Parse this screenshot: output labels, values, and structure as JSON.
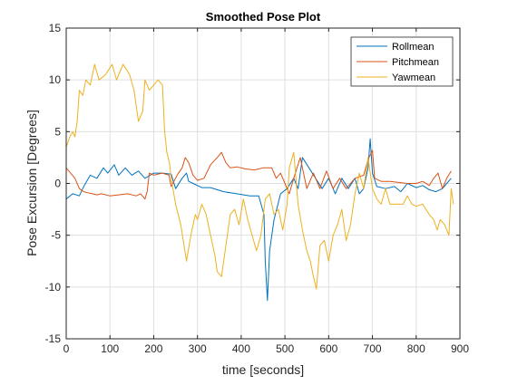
{
  "chart_data": {
    "type": "line",
    "title": "Smoothed Pose Plot",
    "xlabel": "time [seconds]",
    "ylabel": "Pose Excursion [Degrees]",
    "xlim": [
      0,
      900
    ],
    "ylim": [
      -15,
      15
    ],
    "xticks": [
      0,
      100,
      200,
      300,
      400,
      500,
      600,
      700,
      800,
      900
    ],
    "yticks": [
      -15,
      -10,
      -5,
      0,
      5,
      10,
      15
    ],
    "grid": true,
    "legend_position": "top-right",
    "series": [
      {
        "name": "Rollmean",
        "color": "#0072bd",
        "points": [
          [
            0,
            -1.5
          ],
          [
            15,
            -1.0
          ],
          [
            30,
            -1.2
          ],
          [
            40,
            -0.3
          ],
          [
            55,
            0.8
          ],
          [
            70,
            0.5
          ],
          [
            85,
            1.5
          ],
          [
            95,
            1.0
          ],
          [
            110,
            1.8
          ],
          [
            120,
            0.8
          ],
          [
            135,
            1.5
          ],
          [
            150,
            0.8
          ],
          [
            165,
            1.2
          ],
          [
            180,
            0.5
          ],
          [
            200,
            1.0
          ],
          [
            220,
            1.0
          ],
          [
            240,
            0.9
          ],
          [
            250,
            -0.5
          ],
          [
            265,
            0.5
          ],
          [
            275,
            1.0
          ],
          [
            280,
            0.2
          ],
          [
            290,
            0.0
          ],
          [
            310,
            -0.4
          ],
          [
            330,
            -0.4
          ],
          [
            360,
            -0.8
          ],
          [
            390,
            -1.0
          ],
          [
            420,
            -1.2
          ],
          [
            440,
            -1.2
          ],
          [
            452,
            -3.0
          ],
          [
            455,
            -7.5
          ],
          [
            460,
            -11.3
          ],
          [
            465,
            -6.5
          ],
          [
            475,
            -3.5
          ],
          [
            490,
            -1.0
          ],
          [
            505,
            -0.5
          ],
          [
            520,
            0.5
          ],
          [
            530,
            -0.5
          ],
          [
            540,
            2.5
          ],
          [
            555,
            1.5
          ],
          [
            570,
            0.5
          ],
          [
            585,
            -0.5
          ],
          [
            600,
            0.5
          ],
          [
            615,
            -1.0
          ],
          [
            630,
            0.5
          ],
          [
            645,
            -0.5
          ],
          [
            660,
            0.5
          ],
          [
            670,
            -1.0
          ],
          [
            680,
            -0.5
          ],
          [
            690,
            1.5
          ],
          [
            695,
            4.3
          ],
          [
            700,
            1.0
          ],
          [
            710,
            -0.3
          ],
          [
            730,
            -0.5
          ],
          [
            750,
            -0.3
          ],
          [
            765,
            -0.8
          ],
          [
            780,
            0.0
          ],
          [
            800,
            -0.4
          ],
          [
            815,
            -0.2
          ],
          [
            830,
            -0.6
          ],
          [
            845,
            -0.8
          ],
          [
            860,
            -0.5
          ],
          [
            870,
            0.0
          ],
          [
            880,
            0.5
          ]
        ]
      },
      {
        "name": "Pitchmean",
        "color": "#d95319",
        "points": [
          [
            0,
            1.5
          ],
          [
            10,
            1.0
          ],
          [
            20,
            0.5
          ],
          [
            30,
            -0.5
          ],
          [
            40,
            -0.8
          ],
          [
            50,
            -0.9
          ],
          [
            60,
            -1.0
          ],
          [
            70,
            -1.1
          ],
          [
            80,
            -1.0
          ],
          [
            100,
            -1.2
          ],
          [
            120,
            -1.1
          ],
          [
            140,
            -1.0
          ],
          [
            160,
            -1.2
          ],
          [
            170,
            -1.0
          ],
          [
            180,
            -1.5
          ],
          [
            185,
            -0.8
          ],
          [
            190,
            1.0
          ],
          [
            200,
            0.8
          ],
          [
            210,
            0.9
          ],
          [
            220,
            1.0
          ],
          [
            235,
            0.8
          ],
          [
            240,
            -0.3
          ],
          [
            255,
            0.9
          ],
          [
            265,
            1.5
          ],
          [
            272,
            2.5
          ],
          [
            280,
            2.0
          ],
          [
            290,
            0.8
          ],
          [
            300,
            0.3
          ],
          [
            315,
            0.5
          ],
          [
            330,
            1.8
          ],
          [
            345,
            2.5
          ],
          [
            355,
            3.0
          ],
          [
            365,
            2.0
          ],
          [
            375,
            1.5
          ],
          [
            390,
            1.6
          ],
          [
            410,
            1.4
          ],
          [
            430,
            1.3
          ],
          [
            450,
            1.5
          ],
          [
            460,
            1.5
          ],
          [
            470,
            1.5
          ],
          [
            480,
            0.5
          ],
          [
            490,
            1.0
          ],
          [
            500,
            0.0
          ],
          [
            510,
            -1.0
          ],
          [
            520,
            0.5
          ],
          [
            535,
            2.5
          ],
          [
            550,
            -0.5
          ],
          [
            565,
            1.0
          ],
          [
            580,
            -0.5
          ],
          [
            595,
            1.2
          ],
          [
            610,
            -0.5
          ],
          [
            625,
            0.5
          ],
          [
            640,
            -0.5
          ],
          [
            660,
            0.5
          ],
          [
            680,
            0.8
          ],
          [
            690,
            2.3
          ],
          [
            700,
            3.2
          ],
          [
            705,
            0.5
          ],
          [
            720,
            0.2
          ],
          [
            740,
            0.2
          ],
          [
            760,
            0.1
          ],
          [
            780,
            0.0
          ],
          [
            800,
            0.0
          ],
          [
            815,
            0.2
          ],
          [
            830,
            -0.2
          ],
          [
            840,
            0.5
          ],
          [
            850,
            1.0
          ],
          [
            860,
            -0.5
          ],
          [
            870,
            0.5
          ],
          [
            880,
            1.2
          ]
        ]
      },
      {
        "name": "Yawmean",
        "color": "#edb120",
        "points": [
          [
            0,
            3.5
          ],
          [
            8,
            4.5
          ],
          [
            15,
            5.0
          ],
          [
            20,
            4.5
          ],
          [
            25,
            6.0
          ],
          [
            30,
            9.0
          ],
          [
            38,
            8.5
          ],
          [
            45,
            10.0
          ],
          [
            55,
            9.5
          ],
          [
            65,
            11.5
          ],
          [
            75,
            10.0
          ],
          [
            90,
            10.5
          ],
          [
            105,
            11.5
          ],
          [
            115,
            10.0
          ],
          [
            130,
            11.5
          ],
          [
            145,
            10.5
          ],
          [
            155,
            9.0
          ],
          [
            165,
            6.0
          ],
          [
            175,
            7.0
          ],
          [
            180,
            10.0
          ],
          [
            190,
            9.0
          ],
          [
            200,
            9.5
          ],
          [
            210,
            10.0
          ],
          [
            220,
            9.5
          ],
          [
            225,
            5.0
          ],
          [
            230,
            3.0
          ],
          [
            236,
            2.0
          ],
          [
            240,
            0.5
          ],
          [
            250,
            -2.0
          ],
          [
            262,
            -4.0
          ],
          [
            275,
            -7.5
          ],
          [
            285,
            -5.0
          ],
          [
            295,
            -3.0
          ],
          [
            300,
            -3.5
          ],
          [
            310,
            -2.0
          ],
          [
            320,
            -3.0
          ],
          [
            330,
            -5.0
          ],
          [
            340,
            -7.0
          ],
          [
            345,
            -8.5
          ],
          [
            355,
            -9.0
          ],
          [
            365,
            -6.0
          ],
          [
            375,
            -3.0
          ],
          [
            385,
            -2.5
          ],
          [
            395,
            -4.0
          ],
          [
            405,
            -1.5
          ],
          [
            415,
            -3.5
          ],
          [
            425,
            -5.0
          ],
          [
            435,
            -6.5
          ],
          [
            445,
            -5.0
          ],
          [
            455,
            -1.5
          ],
          [
            465,
            -1.0
          ],
          [
            475,
            -3.0
          ],
          [
            485,
            -2.5
          ],
          [
            495,
            -4.5
          ],
          [
            505,
            -2.0
          ],
          [
            510,
            1.5
          ],
          [
            520,
            3.0
          ],
          [
            530,
            -2.0
          ],
          [
            540,
            -4.5
          ],
          [
            550,
            -6.5
          ],
          [
            558,
            -7.5
          ],
          [
            565,
            -9.0
          ],
          [
            572,
            -10.2
          ],
          [
            580,
            -6.0
          ],
          [
            590,
            -5.5
          ],
          [
            600,
            -7.5
          ],
          [
            610,
            -5.0
          ],
          [
            620,
            -4.0
          ],
          [
            630,
            -2.5
          ],
          [
            640,
            -5.5
          ],
          [
            650,
            -4.0
          ],
          [
            660,
            -1.0
          ],
          [
            670,
            1.0
          ],
          [
            680,
            -0.5
          ],
          [
            685,
            1.0
          ],
          [
            690,
            2.5
          ],
          [
            700,
            -0.5
          ],
          [
            710,
            -1.5
          ],
          [
            720,
            -2.0
          ],
          [
            730,
            -0.5
          ],
          [
            740,
            -2.0
          ],
          [
            750,
            -2.0
          ],
          [
            760,
            -2.0
          ],
          [
            770,
            -2.0
          ],
          [
            780,
            -1.2
          ],
          [
            790,
            -2.0
          ],
          [
            800,
            -2.2
          ],
          [
            815,
            -2.0
          ],
          [
            830,
            -3.0
          ],
          [
            840,
            -3.5
          ],
          [
            848,
            -4.5
          ],
          [
            855,
            -3.5
          ],
          [
            865,
            -4.0
          ],
          [
            875,
            -5.0
          ],
          [
            880,
            -0.5
          ],
          [
            885,
            -2.0
          ]
        ]
      }
    ]
  }
}
